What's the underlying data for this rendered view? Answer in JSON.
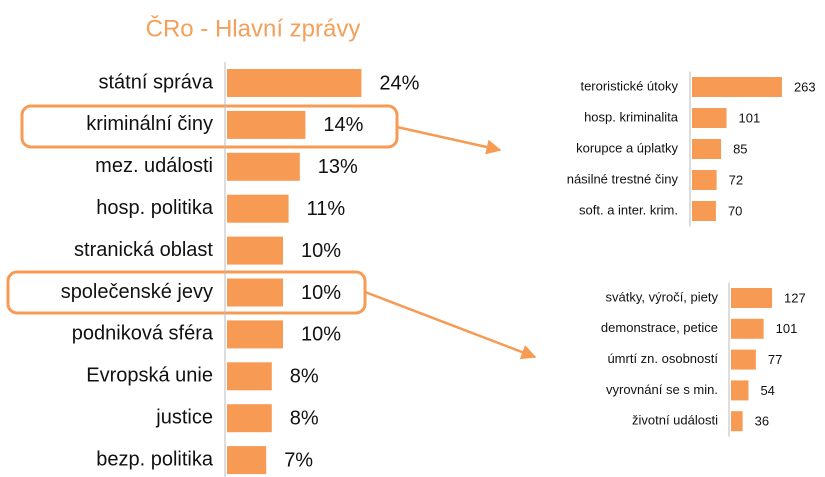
{
  "chart_data": [
    {
      "type": "bar",
      "title": "ČRo - Hlavní zprávy",
      "color": "#f79b54",
      "categories": [
        "státní správa",
        "kriminální činy",
        "mez. události",
        "hosp. politika",
        "stranická oblast",
        "společenské jevy",
        "podniková sféra",
        "Evropská unie",
        "justice",
        "bezp. politika"
      ],
      "values": [
        24,
        14,
        13,
        11,
        10,
        10,
        10,
        8,
        8,
        7
      ],
      "value_labels": [
        "24%",
        "14%",
        "13%",
        "11%",
        "10%",
        "10%",
        "10%",
        "8%",
        "8%",
        "7%"
      ]
    },
    {
      "type": "bar",
      "color": "#f79b54",
      "categories": [
        "teroristické útoky",
        "hosp. kriminalita",
        "korupce a úplatky",
        "násilné trestné činy",
        "soft. a inter. krim."
      ],
      "values": [
        263,
        101,
        85,
        72,
        70
      ]
    },
    {
      "type": "bar",
      "color": "#f79b54",
      "categories": [
        "svátky, výročí, piety",
        "demonstrace, petice",
        "úmrtí zn. osobností",
        "vyrovnání se s min.",
        "životní události"
      ],
      "values": [
        127,
        101,
        77,
        54,
        36
      ]
    }
  ]
}
